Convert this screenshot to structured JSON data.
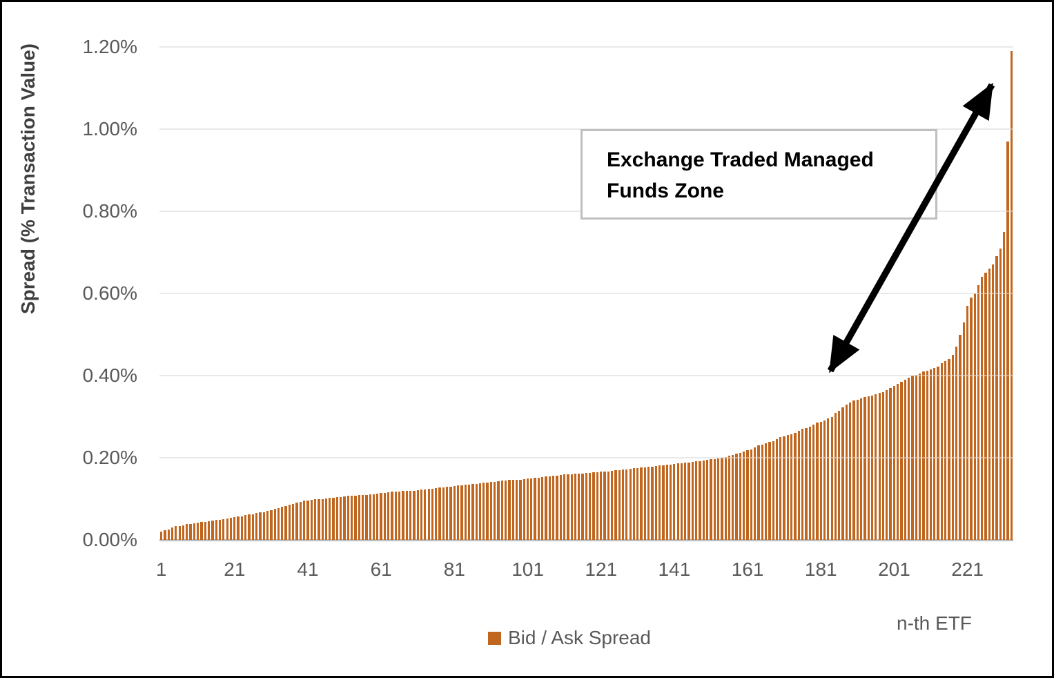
{
  "figure": {
    "background": "#FFFFFF",
    "border_color": "#000000",
    "gridline_color": "#D9D9D9",
    "baseline_color": "#BFBFBF",
    "tick_text_color": "#595959"
  },
  "annotation": {
    "text": "Exchange Traded Managed Funds Zone",
    "border_color": "#BFBFBF",
    "arrow_color": "#000000"
  },
  "legend": {
    "label": "Bid / Ask Spread"
  },
  "chart_data": {
    "type": "bar",
    "title": "",
    "xlabel": "n-th ETF",
    "ylabel": "Spread (% Transaction Value)",
    "series_name": "Bid / Ask Spread",
    "bar_color": "#C0661F",
    "ylim": [
      0,
      1.2
    ],
    "grid": true,
    "legend_position": "bottom",
    "y_ticks": [
      {
        "value": 1.2,
        "label": "1.20%"
      },
      {
        "value": 1.0,
        "label": "1.00%"
      },
      {
        "value": 0.8,
        "label": "0.80%"
      },
      {
        "value": 0.6,
        "label": "0.60%"
      },
      {
        "value": 0.4,
        "label": "0.40%"
      },
      {
        "value": 0.2,
        "label": "0.20%"
      },
      {
        "value": 0.0,
        "label": "0.00%"
      }
    ],
    "x_tick_labels": [
      "1",
      "21",
      "41",
      "61",
      "81",
      "101",
      "121",
      "141",
      "161",
      "181",
      "201",
      "221"
    ],
    "n_bars": 233,
    "values": [
      0.02,
      0.024,
      0.026,
      0.03,
      0.033,
      0.034,
      0.036,
      0.038,
      0.039,
      0.04,
      0.042,
      0.043,
      0.044,
      0.045,
      0.047,
      0.048,
      0.049,
      0.05,
      0.052,
      0.053,
      0.055,
      0.057,
      0.058,
      0.06,
      0.062,
      0.063,
      0.065,
      0.067,
      0.068,
      0.07,
      0.073,
      0.075,
      0.078,
      0.08,
      0.083,
      0.085,
      0.088,
      0.09,
      0.093,
      0.095,
      0.096,
      0.098,
      0.099,
      0.1,
      0.1,
      0.101,
      0.102,
      0.103,
      0.104,
      0.105,
      0.106,
      0.107,
      0.107,
      0.108,
      0.109,
      0.11,
      0.11,
      0.111,
      0.111,
      0.112,
      0.114,
      0.115,
      0.116,
      0.117,
      0.118,
      0.118,
      0.119,
      0.12,
      0.12,
      0.12,
      0.121,
      0.122,
      0.123,
      0.124,
      0.125,
      0.126,
      0.127,
      0.128,
      0.129,
      0.13,
      0.131,
      0.132,
      0.133,
      0.134,
      0.135,
      0.136,
      0.137,
      0.138,
      0.139,
      0.14,
      0.141,
      0.142,
      0.143,
      0.144,
      0.145,
      0.146,
      0.146,
      0.147,
      0.147,
      0.148,
      0.149,
      0.15,
      0.151,
      0.152,
      0.153,
      0.154,
      0.155,
      0.156,
      0.157,
      0.158,
      0.159,
      0.16,
      0.16,
      0.161,
      0.162,
      0.162,
      0.163,
      0.163,
      0.164,
      0.165,
      0.166,
      0.167,
      0.167,
      0.168,
      0.169,
      0.17,
      0.171,
      0.172,
      0.173,
      0.174,
      0.175,
      0.176,
      0.177,
      0.178,
      0.179,
      0.18,
      0.181,
      0.182,
      0.183,
      0.184,
      0.185,
      0.186,
      0.187,
      0.188,
      0.189,
      0.19,
      0.191,
      0.192,
      0.193,
      0.195,
      0.196,
      0.197,
      0.199,
      0.2,
      0.202,
      0.205,
      0.207,
      0.21,
      0.212,
      0.215,
      0.218,
      0.22,
      0.225,
      0.23,
      0.232,
      0.235,
      0.238,
      0.24,
      0.245,
      0.25,
      0.252,
      0.255,
      0.258,
      0.26,
      0.265,
      0.27,
      0.272,
      0.275,
      0.28,
      0.285,
      0.288,
      0.29,
      0.295,
      0.3,
      0.31,
      0.315,
      0.322,
      0.33,
      0.335,
      0.34,
      0.342,
      0.345,
      0.348,
      0.35,
      0.352,
      0.355,
      0.358,
      0.36,
      0.365,
      0.37,
      0.375,
      0.38,
      0.385,
      0.39,
      0.395,
      0.4,
      0.402,
      0.405,
      0.41,
      0.412,
      0.415,
      0.418,
      0.422,
      0.43,
      0.435,
      0.44,
      0.45,
      0.47,
      0.5,
      0.53,
      0.57,
      0.59,
      0.6,
      0.62,
      0.64,
      0.65,
      0.66,
      0.67,
      0.69,
      0.71,
      0.75,
      0.97,
      1.19
    ]
  }
}
